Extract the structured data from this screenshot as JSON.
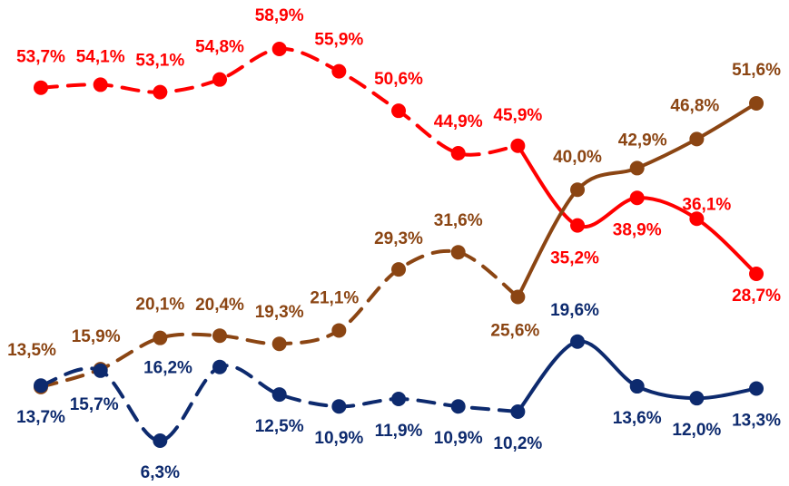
{
  "chart_data": {
    "type": "line",
    "series": [
      {
        "name": null,
        "color": "#ff0000",
        "values": [
          53.7,
          54.1,
          53.1,
          54.8,
          58.9,
          55.9,
          50.6,
          44.9,
          45.9,
          35.2,
          38.9,
          36.1,
          28.7
        ],
        "value_labels": [
          "53,7%",
          "54,1%",
          "53,1%",
          "54,8%",
          "58,9%",
          "55,9%",
          "50,6%",
          "44,9%",
          "45,9%",
          "35,2%",
          "38,9%",
          "36,1%",
          "28,7%"
        ]
      },
      {
        "name": null,
        "color": "#8b4513",
        "values": [
          13.5,
          15.9,
          20.1,
          20.4,
          19.3,
          21.1,
          29.3,
          31.6,
          25.6,
          40.0,
          42.9,
          46.8,
          51.6
        ],
        "value_labels": [
          "13,5%",
          "15,9%",
          "20,1%",
          "20,4%",
          "19,3%",
          "21,1%",
          "29,3%",
          "31,6%",
          "25,6%",
          "40,0%",
          "42,9%",
          "46,8%",
          "51,6%"
        ]
      },
      {
        "name": null,
        "color": "#0d2a6e",
        "values": [
          13.7,
          15.7,
          6.3,
          16.2,
          12.5,
          10.9,
          11.9,
          10.9,
          10.2,
          19.6,
          13.6,
          12.0,
          13.3
        ],
        "value_labels": [
          "13,7%",
          "15,7%",
          "6,3%",
          "16,2%",
          "12,5%",
          "10,9%",
          "11,9%",
          "10,9%",
          "10,2%",
          "19,6%",
          "13,6%",
          "12,0%",
          "13,3%"
        ]
      }
    ]
  }
}
